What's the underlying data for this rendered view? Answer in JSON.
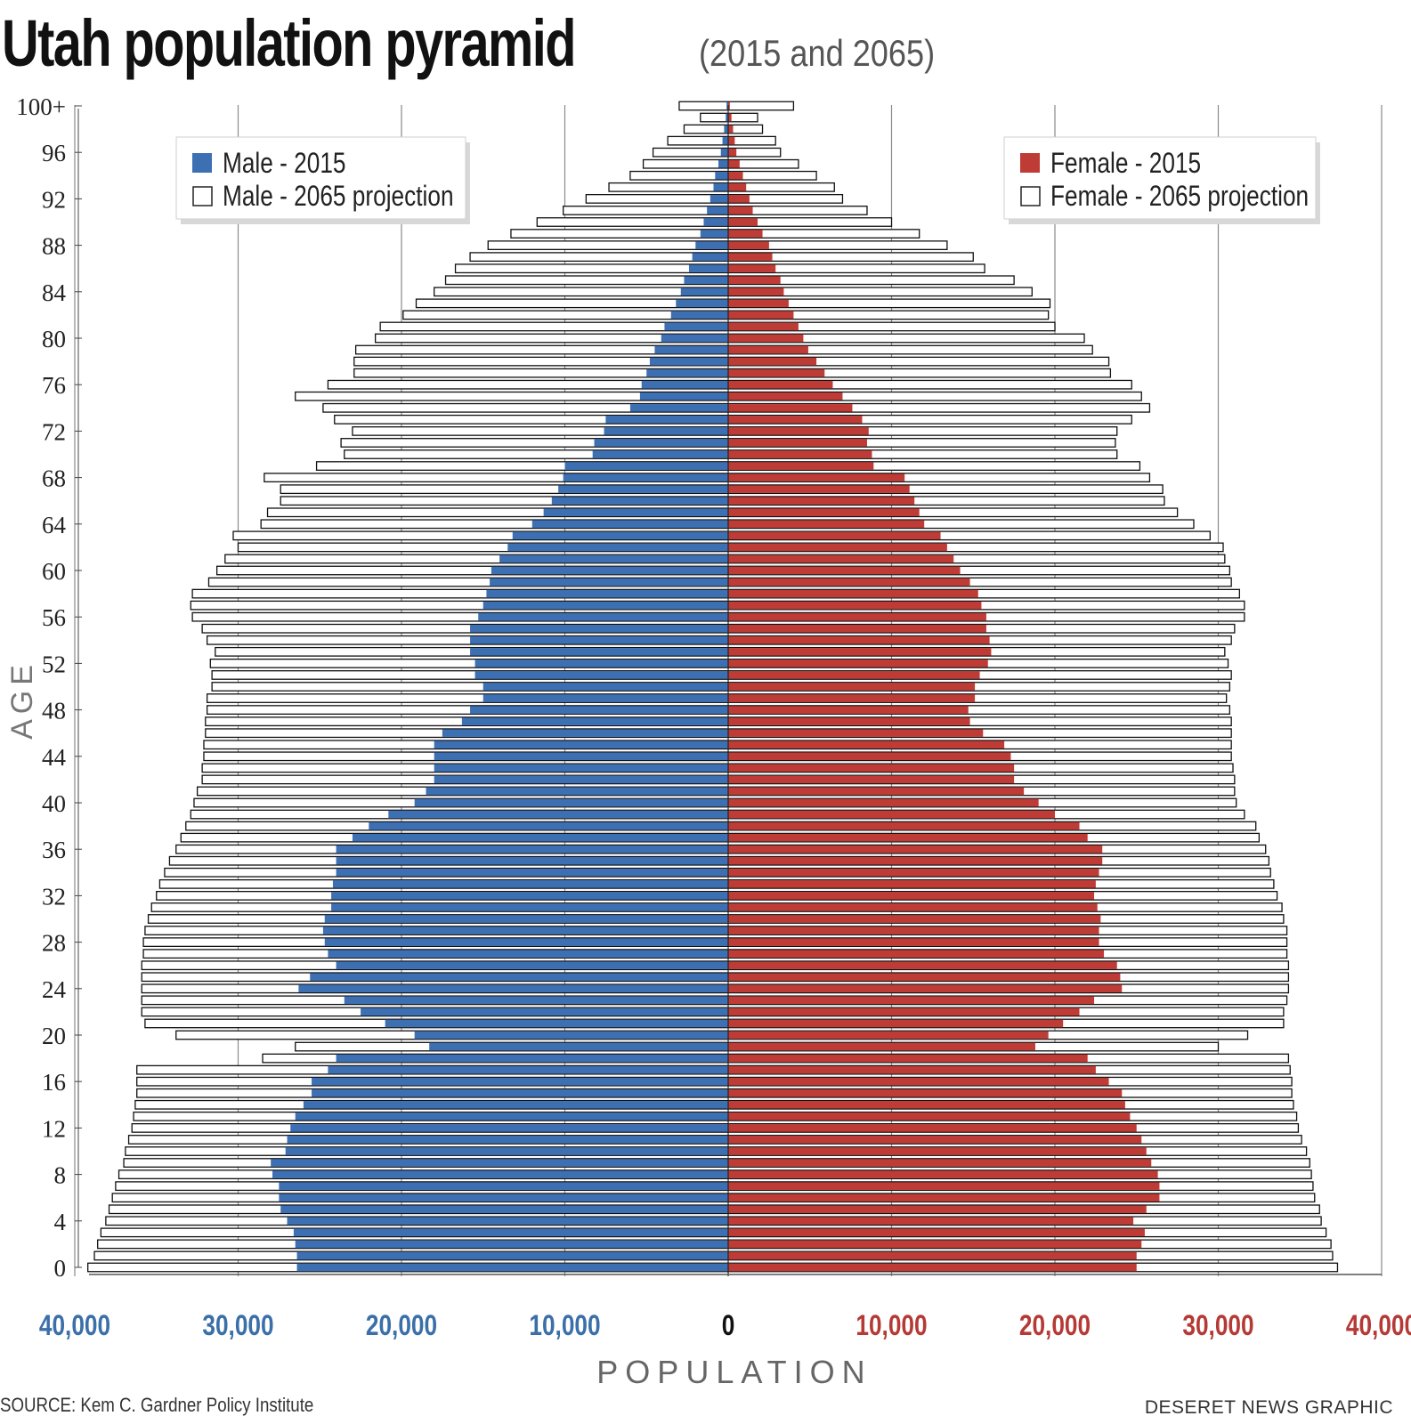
{
  "header": {
    "title": "Utah population pyramid",
    "subtitle": "(2015 and 2065)"
  },
  "footer": {
    "source": "SOURCE: Kem C. Gardner Policy Institute",
    "credit": "DESERET NEWS GRAPHIC"
  },
  "chart_data": {
    "type": "bar",
    "orientation": "horizontal-pyramid",
    "title": "Utah population pyramid",
    "subtitle": "(2015 and 2065)",
    "xlabel": "POPULATION",
    "ylabel": "AGE",
    "xlim": [
      -40000,
      40000
    ],
    "x_ticks": [
      -40000,
      -30000,
      -20000,
      -10000,
      0,
      10000,
      20000,
      30000,
      40000
    ],
    "x_tick_labels": [
      "40,000",
      "30,000",
      "20,000",
      "10,000",
      "0",
      "10,000",
      "20,000",
      "30,000",
      "40,000"
    ],
    "y_ticks": [
      0,
      4,
      8,
      12,
      16,
      20,
      24,
      28,
      32,
      36,
      40,
      44,
      48,
      52,
      56,
      60,
      64,
      68,
      72,
      76,
      80,
      84,
      88,
      92,
      96,
      100
    ],
    "y_tick_labels": [
      "0",
      "4",
      "8",
      "12",
      "16",
      "20",
      "24",
      "28",
      "32",
      "36",
      "40",
      "44",
      "48",
      "52",
      "56",
      "60",
      "64",
      "68",
      "72",
      "76",
      "80",
      "84",
      "88",
      "92",
      "96",
      "100+"
    ],
    "ages": [
      0,
      1,
      2,
      3,
      4,
      5,
      6,
      7,
      8,
      9,
      10,
      11,
      12,
      13,
      14,
      15,
      16,
      17,
      18,
      19,
      20,
      21,
      22,
      23,
      24,
      25,
      26,
      27,
      28,
      29,
      30,
      31,
      32,
      33,
      34,
      35,
      36,
      37,
      38,
      39,
      40,
      41,
      42,
      43,
      44,
      45,
      46,
      47,
      48,
      49,
      50,
      51,
      52,
      53,
      54,
      55,
      56,
      57,
      58,
      59,
      60,
      61,
      62,
      63,
      64,
      65,
      66,
      67,
      68,
      69,
      70,
      71,
      72,
      73,
      74,
      75,
      76,
      77,
      78,
      79,
      80,
      81,
      82,
      83,
      84,
      85,
      86,
      87,
      88,
      89,
      90,
      91,
      92,
      93,
      94,
      95,
      96,
      97,
      98,
      99,
      100
    ],
    "grid": "vertical",
    "series": [
      {
        "name": "Male - 2015",
        "side": "left",
        "color": "#3d6fb3",
        "fill": "solid",
        "values": [
          26400,
          26400,
          26500,
          26600,
          27000,
          27400,
          27500,
          27500,
          27900,
          28000,
          27100,
          27000,
          26800,
          26500,
          26000,
          25500,
          25500,
          24500,
          24000,
          18300,
          19200,
          21000,
          22500,
          23500,
          26300,
          25600,
          24000,
          24500,
          24700,
          24800,
          24700,
          24300,
          24300,
          24200,
          24000,
          24000,
          24000,
          23000,
          22000,
          20800,
          19200,
          18500,
          18000,
          18000,
          18000,
          18000,
          17500,
          16300,
          15800,
          15000,
          15000,
          15500,
          15500,
          15800,
          15800,
          15800,
          15300,
          15000,
          14800,
          14600,
          14500,
          14000,
          13500,
          13200,
          12000,
          11300,
          10800,
          10400,
          10100,
          10000,
          8300,
          8200,
          7600,
          7500,
          6000,
          5400,
          5300,
          5000,
          4800,
          4500,
          4100,
          3900,
          3500,
          3200,
          2900,
          2700,
          2400,
          2200,
          2000,
          1700,
          1500,
          1300,
          1100,
          900,
          800,
          600,
          450,
          350,
          250,
          150,
          100
        ]
      },
      {
        "name": "Male - 2065 projection",
        "side": "left",
        "color": "#ffffff",
        "fill": "outline",
        "values": [
          39200,
          38800,
          38600,
          38400,
          38100,
          37900,
          37700,
          37500,
          37300,
          37000,
          36900,
          36700,
          36500,
          36400,
          36300,
          36200,
          36200,
          36200,
          28500,
          26500,
          33800,
          35700,
          35900,
          35900,
          35900,
          35900,
          35900,
          35800,
          35800,
          35700,
          35500,
          35300,
          35000,
          34800,
          34500,
          34200,
          33800,
          33500,
          33200,
          32900,
          32700,
          32500,
          32200,
          32200,
          32100,
          32100,
          32000,
          32000,
          31900,
          31900,
          31600,
          31600,
          31700,
          31400,
          31900,
          32200,
          32800,
          32900,
          32800,
          31800,
          31300,
          30800,
          30000,
          30300,
          28600,
          28200,
          27400,
          27400,
          28400,
          25200,
          23500,
          23700,
          23000,
          24100,
          24800,
          26500,
          24500,
          22900,
          22900,
          22800,
          21600,
          21300,
          19900,
          19100,
          18000,
          17300,
          16700,
          15800,
          14700,
          13300,
          11700,
          10100,
          8700,
          7300,
          6000,
          5200,
          4600,
          3700,
          2700,
          1700,
          3000
        ]
      },
      {
        "name": "Female - 2015",
        "side": "right",
        "color": "#bf3b36",
        "fill": "solid",
        "values": [
          25000,
          25000,
          25300,
          25500,
          24800,
          25600,
          26400,
          26400,
          26300,
          25900,
          25600,
          25300,
          25000,
          24600,
          24300,
          24100,
          23300,
          22500,
          22000,
          18800,
          19600,
          20500,
          21500,
          22400,
          24100,
          24000,
          23800,
          23000,
          22700,
          22700,
          22800,
          22600,
          22400,
          22500,
          22700,
          22900,
          22900,
          22000,
          21500,
          20000,
          19000,
          18100,
          17500,
          17500,
          17300,
          16900,
          15600,
          14800,
          14700,
          15100,
          15100,
          15400,
          15900,
          16100,
          16000,
          15800,
          15800,
          15500,
          15300,
          14800,
          14200,
          13800,
          13400,
          13000,
          12000,
          11700,
          11400,
          11100,
          10800,
          8900,
          8800,
          8500,
          8600,
          8200,
          7600,
          7000,
          6400,
          5900,
          5400,
          4900,
          4600,
          4300,
          4000,
          3700,
          3400,
          3200,
          2900,
          2700,
          2500,
          2100,
          1800,
          1500,
          1300,
          1100,
          900,
          700,
          500,
          400,
          300,
          200,
          100
        ]
      },
      {
        "name": "Female - 2065 projection",
        "side": "right",
        "color": "#ffffff",
        "fill": "outline",
        "values": [
          37300,
          37000,
          36900,
          36600,
          36300,
          36200,
          35900,
          35800,
          35700,
          35600,
          35400,
          35100,
          34900,
          34800,
          34600,
          34500,
          34500,
          34400,
          34300,
          30000,
          31800,
          34000,
          34000,
          34200,
          34300,
          34300,
          34300,
          34200,
          34200,
          34200,
          34000,
          33900,
          33600,
          33400,
          33200,
          33100,
          32900,
          32500,
          32300,
          31600,
          31100,
          31000,
          31000,
          30900,
          30800,
          30800,
          30800,
          30800,
          30700,
          30500,
          30700,
          30800,
          30600,
          30400,
          30800,
          31000,
          31600,
          31600,
          31300,
          30800,
          30700,
          30400,
          30300,
          29500,
          28500,
          27500,
          26700,
          26600,
          25800,
          25200,
          23800,
          23700,
          23800,
          24700,
          25800,
          25300,
          24700,
          23400,
          23300,
          22300,
          21800,
          20000,
          19600,
          19700,
          18600,
          17500,
          15700,
          15000,
          13400,
          11700,
          10000,
          8500,
          7000,
          6500,
          5400,
          4300,
          3200,
          2900,
          2100,
          1800,
          4000
        ]
      }
    ],
    "legend": {
      "left": {
        "position": "top-left",
        "entries": [
          "Male - 2015",
          "Male - 2065 projection"
        ]
      },
      "right": {
        "position": "top-right",
        "entries": [
          "Female - 2015",
          "Female - 2065 projection"
        ]
      }
    },
    "colors": {
      "male_axis_labels": "#3a6fa8",
      "female_axis_labels": "#b53a35",
      "zero_label": "#111111",
      "gridline": "#8a8a8a",
      "bar_outline": "#111111"
    }
  }
}
